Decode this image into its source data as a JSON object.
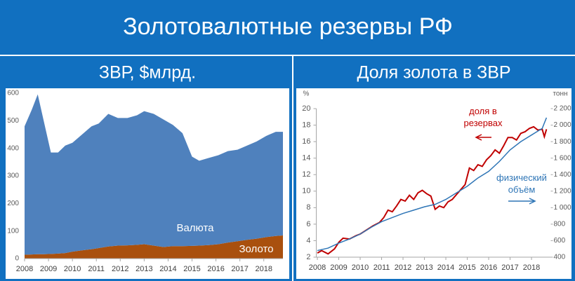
{
  "header": {
    "title": "Золотовалютные резервы РФ"
  },
  "chart_data": [
    {
      "type": "area",
      "stacked": true,
      "title": "ЗВР, $млрд.",
      "x": [
        2008,
        2008.3,
        2008.55,
        2008.8,
        2009.1,
        2009.4,
        2009.7,
        2010,
        2010.4,
        2010.8,
        2011.1,
        2011.5,
        2011.9,
        2012.3,
        2012.7,
        2013,
        2013.4,
        2013.8,
        2014.2,
        2014.6,
        2015,
        2015.3,
        2015.7,
        2016.1,
        2016.5,
        2016.9,
        2017.3,
        2017.7,
        2018.1,
        2018.5,
        2018.8
      ],
      "xlim": [
        2008,
        2018.8
      ],
      "xticks": [
        2008,
        2009,
        2010,
        2011,
        2012,
        2013,
        2014,
        2015,
        2016,
        2017,
        2018
      ],
      "ylim": [
        0,
        600
      ],
      "yticks": [
        0,
        100,
        200,
        300,
        400,
        500,
        600
      ],
      "series": [
        {
          "name": "Золото",
          "color": "#a9500e",
          "values": [
            14,
            15,
            16,
            16,
            17,
            18,
            20,
            25,
            30,
            34,
            38,
            44,
            47,
            48,
            50,
            52,
            47,
            42,
            45,
            45,
            46,
            47,
            49,
            52,
            58,
            63,
            68,
            72,
            78,
            82,
            84
          ]
        },
        {
          "name": "Валюта",
          "color": "#4f81bd",
          "values": [
            466,
            525,
            580,
            484,
            368,
            367,
            390,
            395,
            420,
            446,
            452,
            481,
            463,
            462,
            470,
            483,
            478,
            463,
            440,
            410,
            324,
            308,
            316,
            323,
            332,
            332,
            342,
            353,
            367,
            378,
            376
          ]
        }
      ]
    },
    {
      "type": "line",
      "title": "Доля золота в ЗВР",
      "ylabel": "%",
      "y2label": "тонн",
      "xlim": [
        2007.95,
        2018.9
      ],
      "xticks": [
        2008,
        2009,
        2010,
        2011,
        2012,
        2013,
        2014,
        2015,
        2016,
        2017,
        2018
      ],
      "ylim": [
        2,
        20
      ],
      "yticks": [
        2,
        4,
        6,
        8,
        10,
        12,
        14,
        16,
        18,
        20
      ],
      "y2lim": [
        400,
        2200
      ],
      "y2ticks": [
        400,
        600,
        800,
        {
          "value": 1000,
          "label": "1 000"
        },
        {
          "value": 1200,
          "label": "1 200"
        },
        {
          "value": 1400,
          "label": "1 400"
        },
        {
          "value": 1600,
          "label": "1 600"
        },
        {
          "value": 1800,
          "label": "1 800"
        },
        {
          "value": 2000,
          "label": "2 000"
        },
        {
          "value": 2200,
          "label": "2 200"
        }
      ],
      "series": [
        {
          "name": "доля в резервах",
          "color": "#c00000",
          "x": [
            2008,
            2008.2,
            2008.5,
            2008.8,
            2009,
            2009.2,
            2009.5,
            2009.8,
            2010,
            2010.3,
            2010.6,
            2010.9,
            2011.1,
            2011.3,
            2011.5,
            2011.7,
            2011.9,
            2012.1,
            2012.3,
            2012.5,
            2012.7,
            2012.9,
            2013.1,
            2013.3,
            2013.5,
            2013.7,
            2013.9,
            2014.1,
            2014.3,
            2014.5,
            2014.7,
            2014.9,
            2015.1,
            2015.3,
            2015.5,
            2015.7,
            2015.9,
            2016.1,
            2016.3,
            2016.5,
            2016.7,
            2016.9,
            2017.1,
            2017.3,
            2017.5,
            2017.7,
            2017.9,
            2018.1,
            2018.3,
            2018.5,
            2018.6,
            2018.7
          ],
          "values": [
            2.5,
            2.8,
            2.4,
            3.0,
            3.8,
            4.3,
            4.2,
            4.6,
            4.8,
            5.3,
            5.8,
            6.2,
            6.8,
            7.7,
            7.5,
            8.2,
            9.0,
            8.8,
            9.5,
            9.0,
            9.8,
            10.1,
            9.7,
            9.4,
            7.8,
            8.2,
            8.0,
            8.7,
            9.0,
            9.6,
            10.2,
            10.8,
            12.8,
            12.5,
            13.2,
            13.0,
            13.8,
            14.3,
            15.0,
            14.6,
            15.5,
            16.5,
            16.5,
            16.2,
            17.0,
            17.2,
            17.6,
            17.8,
            17.4,
            17.5,
            16.6,
            17.5
          ]
        },
        {
          "name": "физический объём",
          "color": "#2e75b6",
          "axis": "y2",
          "x": [
            2008,
            2008.5,
            2009,
            2009.5,
            2010,
            2010.5,
            2011,
            2011.5,
            2012,
            2012.5,
            2013,
            2013.5,
            2014,
            2014.5,
            2015,
            2015.5,
            2016,
            2016.5,
            2017,
            2017.5,
            2018,
            2018.5,
            2018.7
          ],
          "values": [
            480,
            510,
            570,
            620,
            680,
            760,
            830,
            880,
            930,
            970,
            1010,
            1040,
            1100,
            1180,
            1260,
            1360,
            1440,
            1560,
            1700,
            1800,
            1880,
            1960,
            2090
          ]
        }
      ]
    }
  ]
}
